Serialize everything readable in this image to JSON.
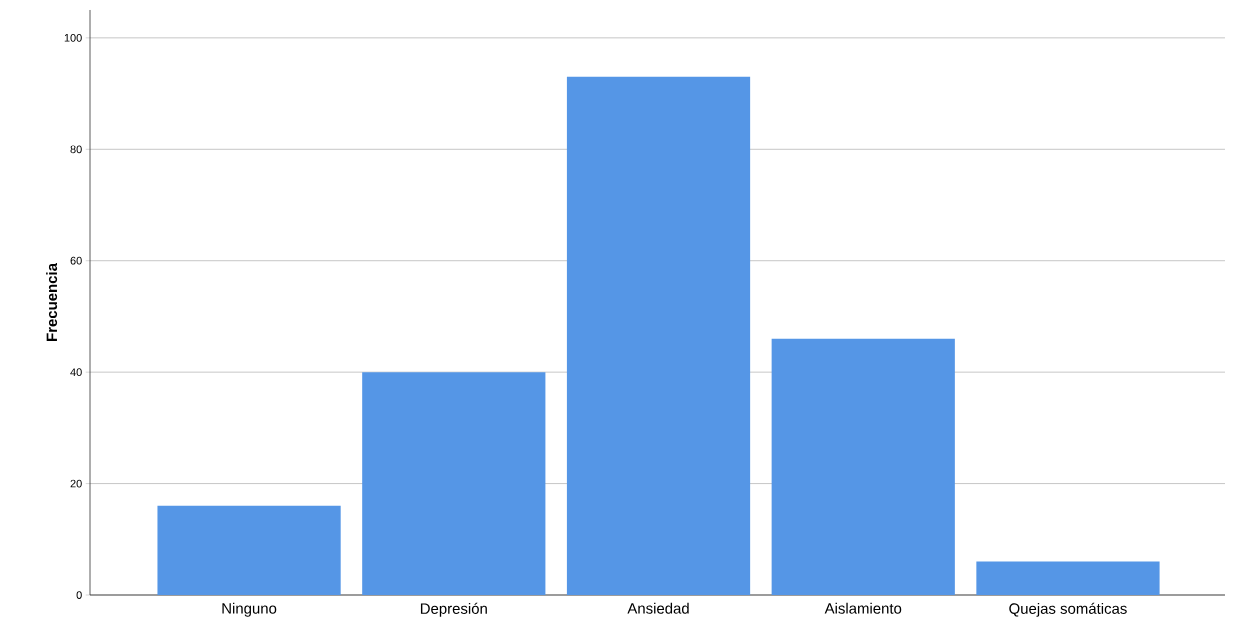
{
  "chart_data": {
    "type": "bar",
    "ylabel": "Frecuencia",
    "categories": [
      "Ninguno",
      "Depresión",
      "Ansiedad",
      "Aislamiento",
      "Quejas somáticas"
    ],
    "values": [
      16,
      40,
      93,
      46,
      6
    ],
    "color": "#5596e6",
    "ylim": [
      0,
      105
    ],
    "yticks": [
      0,
      20,
      40,
      60,
      80,
      100
    ],
    "grid": "y"
  }
}
